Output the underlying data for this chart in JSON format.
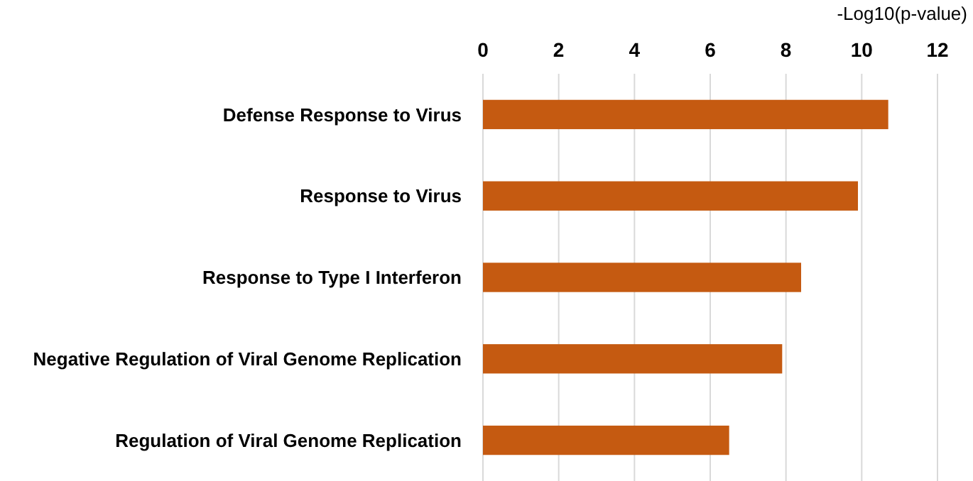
{
  "chart_data": {
    "type": "bar",
    "orientation": "horizontal",
    "xlabel": "-Log10(p-value)",
    "categories": [
      "Defense Response to Virus",
      "Response to Virus",
      "Response to Type I Interferon",
      "Negative Regulation of Viral Genome Replication",
      "Regulation of Viral Genome Replication"
    ],
    "values": [
      10.7,
      9.9,
      8.4,
      7.9,
      6.5
    ],
    "color": "#c55a11",
    "xlim": [
      0,
      12
    ],
    "xticks": [
      0,
      2,
      4,
      6,
      8,
      10,
      12
    ],
    "grid": "x"
  }
}
